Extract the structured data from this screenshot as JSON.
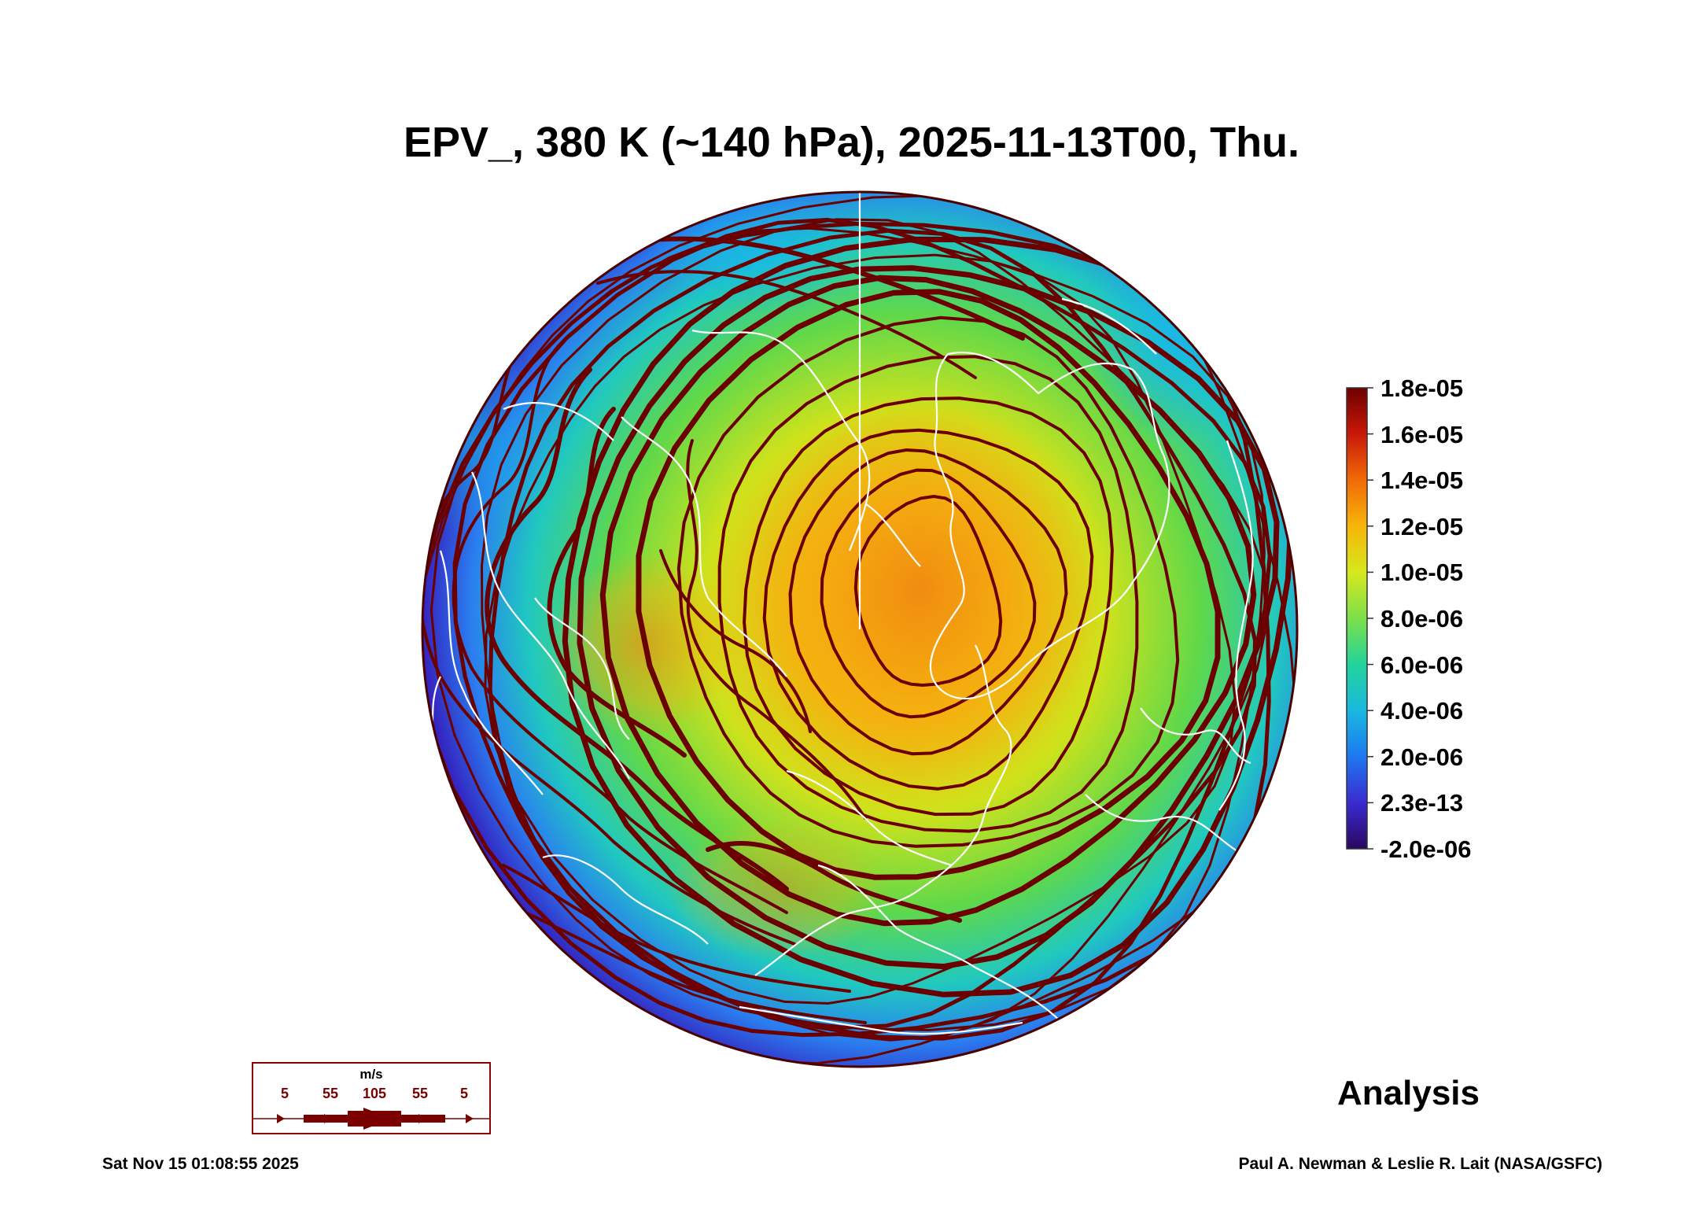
{
  "title": "EPV_, 380 K (~140 hPa), 2025-11-13T00, Thu.",
  "colorbar": {
    "labels": [
      "1.8e-05",
      "1.6e-05",
      "1.4e-05",
      "1.2e-05",
      "1.0e-05",
      "8.0e-06",
      "6.0e-06",
      "4.0e-06",
      "2.0e-06",
      "2.3e-13",
      "-2.0e-06"
    ],
    "colors": [
      "#2a0660",
      "#3a2bd0",
      "#1e78f0",
      "#19b8e0",
      "#21d49a",
      "#7de04a",
      "#d6e81e",
      "#f7b50a",
      "#f26a07",
      "#c81808",
      "#6e0000"
    ]
  },
  "legend": {
    "unit": "m/s",
    "speeds": [
      "5",
      "55",
      "105",
      "55",
      "5"
    ],
    "color": "#7a0000"
  },
  "analysis_label": "Analysis",
  "footer": {
    "timestamp": "Sat Nov 15 01:08:55 2025",
    "credit": "Paul A. Newman & Leslie R. Lait (NASA/GSFC)"
  },
  "colors": {
    "streamline": "#6b0000",
    "coastline": "#ffffff",
    "polar_edge": "#2f1fa8"
  }
}
